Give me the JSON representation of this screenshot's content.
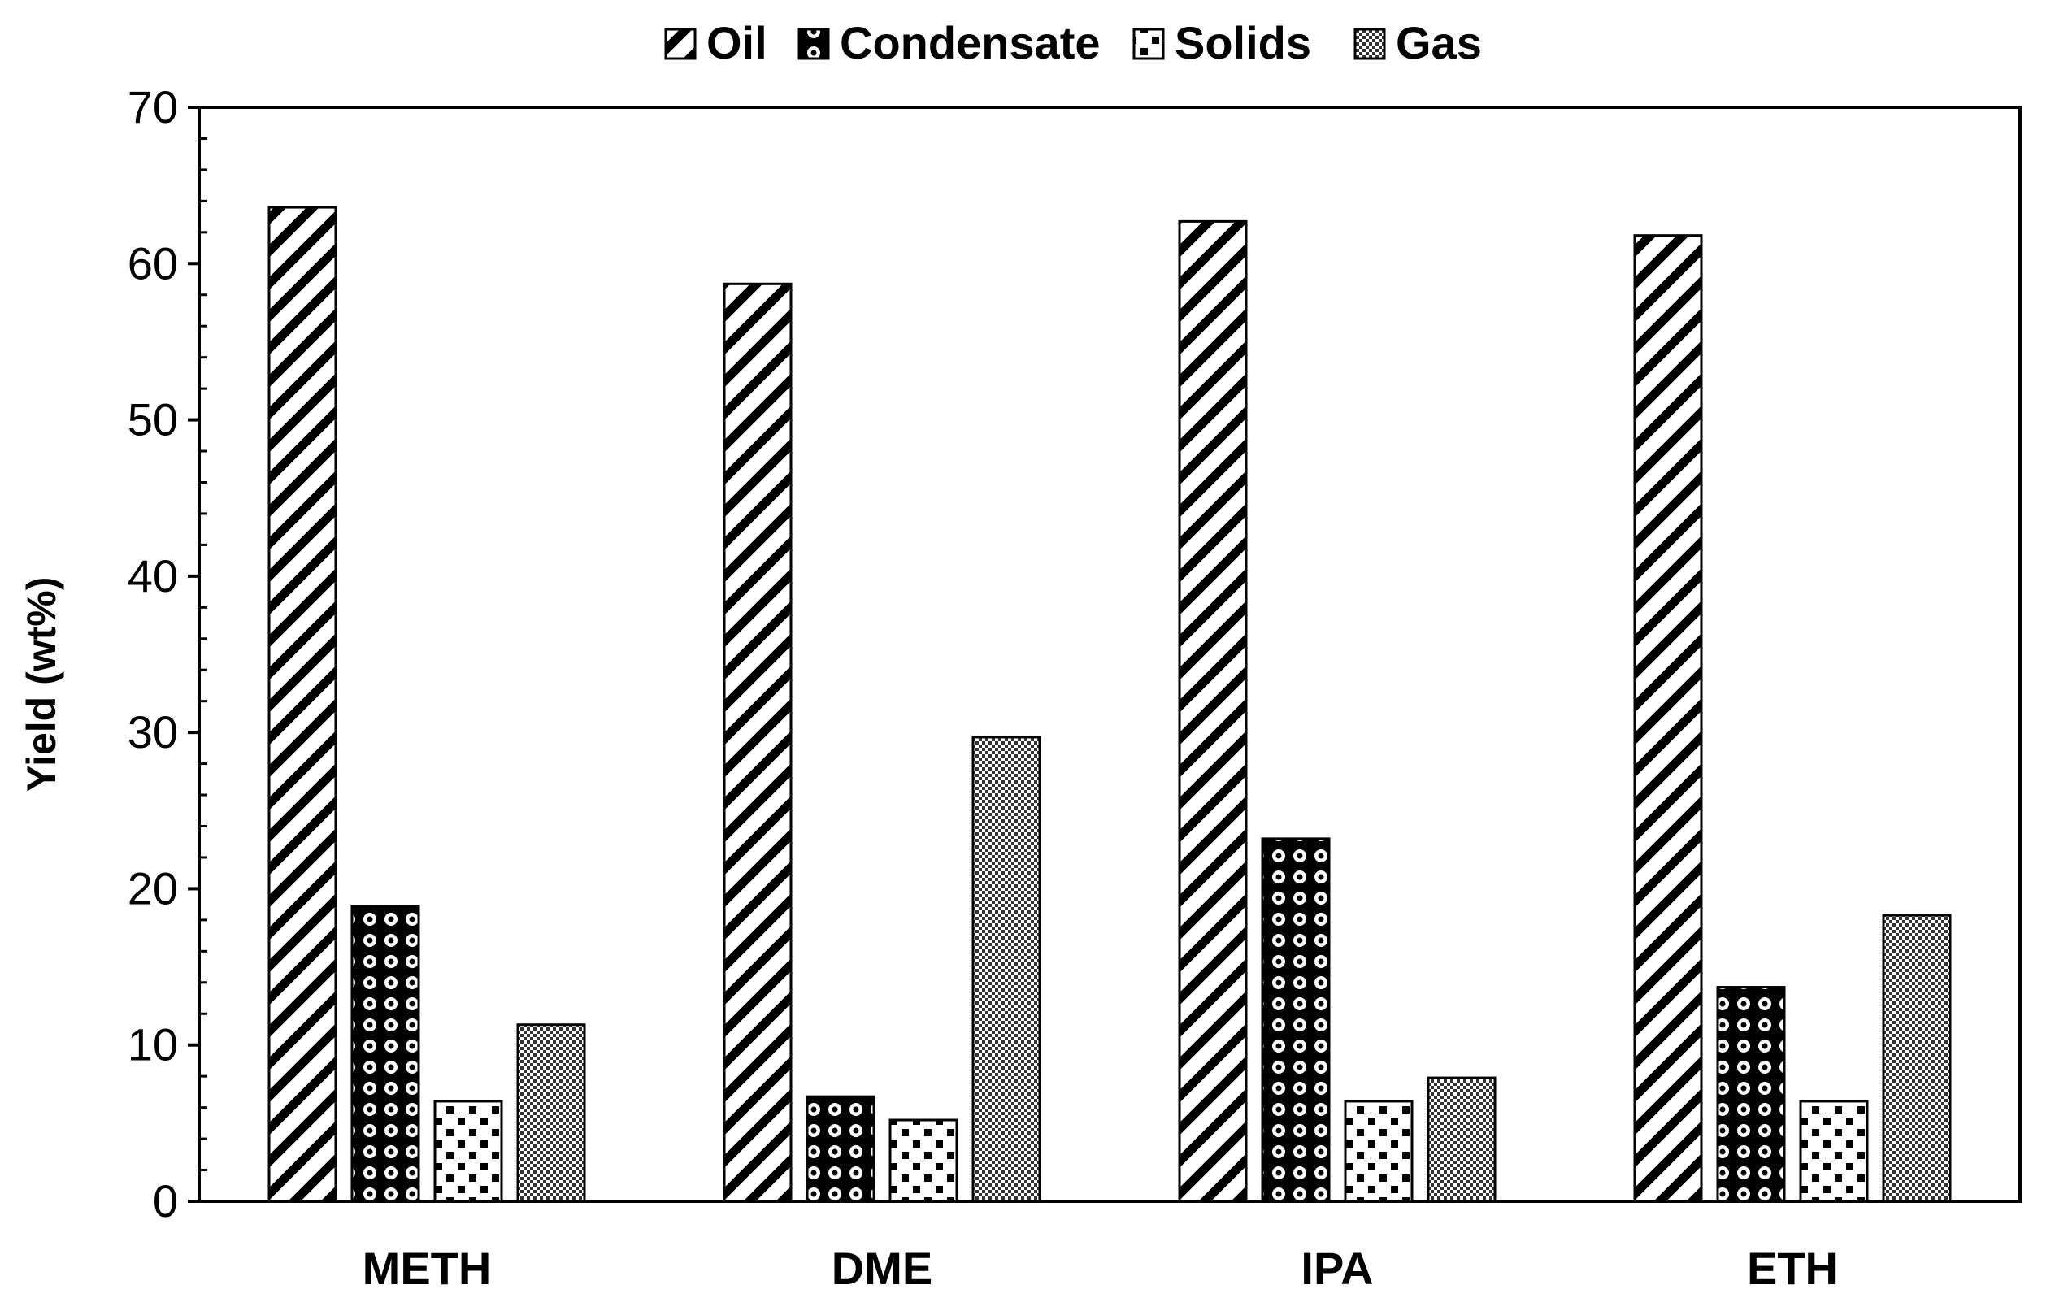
{
  "chart_data": {
    "type": "bar",
    "title": "",
    "xlabel": "",
    "ylabel": "Yield (wt%)",
    "ylim": [
      0,
      70
    ],
    "yticks": [
      0,
      10,
      20,
      30,
      40,
      50,
      60,
      70
    ],
    "categories": [
      "METH",
      "DME",
      "IPA",
      "ETH"
    ],
    "series": [
      {
        "name": "Oil",
        "pattern": "diagonal-stripes",
        "values": [
          63.6,
          58.7,
          62.7,
          61.8
        ]
      },
      {
        "name": "Condensate",
        "pattern": "circles-dark",
        "values": [
          18.9,
          6.7,
          23.2,
          13.7
        ]
      },
      {
        "name": "Solids",
        "pattern": "squares-sparse",
        "values": [
          6.4,
          5.2,
          6.4,
          6.4
        ]
      },
      {
        "name": "Gas",
        "pattern": "checker-fine",
        "values": [
          11.3,
          29.7,
          7.9,
          18.3
        ]
      }
    ],
    "legend_position": "top",
    "grid": false,
    "colors": {
      "bar_stroke": "#000000",
      "background": "#ffffff"
    }
  }
}
